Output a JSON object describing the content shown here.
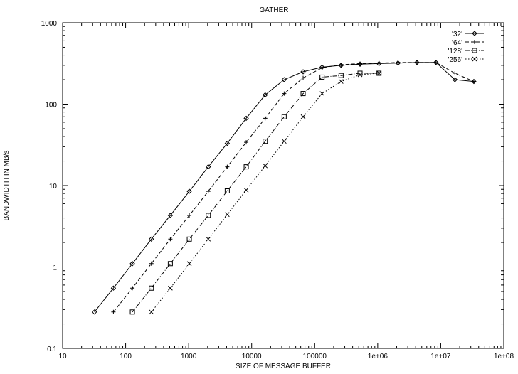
{
  "chart_data": {
    "type": "line",
    "title": "GATHER",
    "xlabel": "SIZE OF MESSAGE BUFFER",
    "ylabel": "BANDWIDTH IN MB/s",
    "x_scale": "log",
    "y_scale": "log",
    "xlim": [
      10,
      100000000
    ],
    "ylim": [
      0.1,
      1000
    ],
    "x_tick_values": [
      10,
      100,
      1000,
      10000,
      100000,
      1000000,
      10000000,
      100000000
    ],
    "x_tick_labels": [
      "10",
      "100",
      "1000",
      "10000",
      "100000",
      "1e+06",
      "1e+07",
      "1e+08"
    ],
    "y_tick_values": [
      0.1,
      1,
      10,
      100,
      1000
    ],
    "y_tick_labels": [
      "0.1",
      "1",
      "10",
      "100",
      "1000"
    ],
    "grid": false,
    "legend_position": "top-right",
    "series": [
      {
        "name": "'32'",
        "marker": "diamond",
        "line": "solid",
        "x": [
          32,
          64,
          128,
          256,
          512,
          1024,
          2048,
          4096,
          8192,
          16384,
          32768,
          65536,
          131072,
          262144,
          524288,
          1048576,
          2097152,
          4194304,
          8388608,
          16777216,
          33554432
        ],
        "y": [
          0.28,
          0.55,
          1.1,
          2.2,
          4.3,
          8.5,
          17,
          33,
          67,
          130,
          200,
          250,
          285,
          300,
          310,
          315,
          320,
          325,
          325,
          200,
          190
        ]
      },
      {
        "name": "'64'",
        "marker": "plus",
        "line": "dashed",
        "x": [
          64,
          128,
          256,
          512,
          1024,
          2048,
          4096,
          8192,
          16384,
          32768,
          65536,
          131072,
          262144,
          524288,
          1048576,
          2097152,
          4194304,
          8388608,
          16777216,
          33554432
        ],
        "y": [
          0.28,
          0.55,
          1.1,
          2.2,
          4.3,
          8.5,
          17,
          34,
          67,
          135,
          210,
          280,
          305,
          315,
          320,
          325,
          325,
          325,
          240,
          190
        ]
      },
      {
        "name": "'128'",
        "marker": "square",
        "line": "dash-dot",
        "x": [
          128,
          256,
          512,
          1024,
          2048,
          4096,
          8192,
          16384,
          32768,
          65536,
          131072,
          262144,
          524288,
          1048576
        ],
        "y": [
          0.28,
          0.55,
          1.1,
          2.2,
          4.3,
          8.6,
          17,
          35,
          70,
          135,
          215,
          225,
          240,
          240
        ]
      },
      {
        "name": "'256'",
        "marker": "cross",
        "line": "dotted",
        "x": [
          256,
          512,
          1024,
          2048,
          4096,
          8192,
          16384,
          32768,
          65536,
          131072,
          262144,
          524288,
          1048576
        ],
        "y": [
          0.28,
          0.55,
          1.1,
          2.2,
          4.4,
          8.8,
          17.5,
          35,
          70,
          135,
          190,
          230,
          240
        ]
      }
    ]
  }
}
